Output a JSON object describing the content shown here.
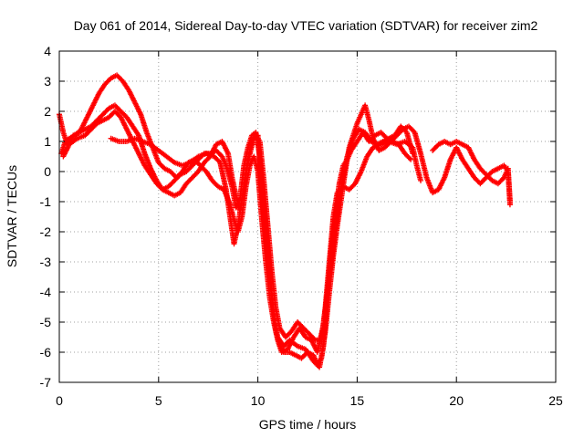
{
  "chart_data": {
    "type": "scatter",
    "title": "Day 061 of 2014, Sidereal Day-to-day VTEC variation (SDTVAR) for receiver zim2",
    "xlabel": "GPS time / hours",
    "ylabel": "SDTVAR / TECUs",
    "xlim": [
      0,
      25
    ],
    "ylim": [
      -7,
      4
    ],
    "xticks": [
      "0",
      "5",
      "10",
      "15",
      "20",
      "25"
    ],
    "yticks": [
      "4",
      "3",
      "2",
      "1",
      "0",
      "-1",
      "-2",
      "-3",
      "-4",
      "-5",
      "-6",
      "-7"
    ],
    "xtick_values": [
      0,
      5,
      10,
      15,
      20,
      25
    ],
    "ytick_values": [
      4,
      3,
      2,
      1,
      0,
      -1,
      -2,
      -3,
      -4,
      -5,
      -6,
      -7
    ],
    "grid": true,
    "marker": "+",
    "color": "#ff0000",
    "series": [
      {
        "points": [
          [
            0.0,
            1.9
          ],
          [
            0.2,
            1.3
          ],
          [
            0.4,
            0.9
          ],
          [
            0.7,
            1.2
          ],
          [
            1.0,
            1.3
          ],
          [
            1.3,
            1.4
          ],
          [
            1.6,
            1.5
          ],
          [
            1.9,
            1.7
          ],
          [
            2.2,
            1.9
          ],
          [
            2.5,
            2.1
          ],
          [
            2.8,
            2.2
          ],
          [
            3.1,
            2.0
          ],
          [
            3.4,
            1.8
          ],
          [
            3.7,
            1.5
          ],
          [
            4.0,
            1.2
          ],
          [
            4.3,
            0.6
          ],
          [
            4.6,
            0.1
          ],
          [
            4.9,
            -0.3
          ],
          [
            5.2,
            -0.6
          ],
          [
            5.5,
            -0.5
          ],
          [
            5.8,
            -0.3
          ],
          [
            6.1,
            -0.1
          ],
          [
            6.4,
            0.0
          ],
          [
            6.7,
            0.2
          ],
          [
            7.0,
            0.4
          ],
          [
            7.3,
            0.6
          ],
          [
            7.6,
            0.6
          ],
          [
            7.9,
            0.7
          ],
          [
            8.2,
            0.5
          ],
          [
            8.4,
            0.2
          ],
          [
            8.7,
            -0.5
          ],
          [
            8.9,
            -1.2
          ],
          [
            9.1,
            -0.9
          ],
          [
            9.3,
            0.2
          ],
          [
            9.5,
            0.8
          ],
          [
            9.7,
            1.2
          ],
          [
            9.9,
            1.3
          ],
          [
            10.1,
            0.5
          ],
          [
            10.3,
            -1.0
          ],
          [
            10.5,
            -2.5
          ],
          [
            10.7,
            -4.0
          ],
          [
            10.9,
            -5.3
          ],
          [
            11.1,
            -5.8
          ],
          [
            11.3,
            -6.0
          ],
          [
            11.6,
            -6.0
          ],
          [
            11.9,
            -6.1
          ],
          [
            12.2,
            -6.2
          ],
          [
            12.5,
            -6.0
          ],
          [
            12.8,
            -6.1
          ],
          [
            13.0,
            -6.4
          ],
          [
            13.2,
            -6.2
          ],
          [
            13.4,
            -5.3
          ],
          [
            13.6,
            -4.0
          ],
          [
            13.8,
            -2.8
          ],
          [
            14.0,
            -1.8
          ],
          [
            14.2,
            -0.9
          ],
          [
            14.4,
            0.0
          ],
          [
            14.6,
            0.8
          ],
          [
            14.8,
            1.2
          ],
          [
            15.0,
            1.6
          ],
          [
            15.2,
            1.9
          ],
          [
            15.4,
            2.2
          ],
          [
            15.6,
            1.7
          ],
          [
            15.8,
            1.1
          ],
          [
            16.1,
            0.7
          ],
          [
            16.4,
            0.8
          ],
          [
            16.7,
            1.0
          ],
          [
            17.0,
            1.2
          ],
          [
            17.3,
            1.4
          ],
          [
            17.6,
            1.5
          ],
          [
            17.9,
            1.3
          ],
          [
            18.2,
            0.6
          ],
          [
            18.5,
            -0.2
          ],
          [
            18.8,
            -0.7
          ],
          [
            19.1,
            -0.6
          ],
          [
            19.4,
            -0.2
          ],
          [
            19.7,
            0.4
          ],
          [
            20.0,
            0.8
          ],
          [
            20.3,
            0.4
          ],
          [
            20.6,
            0.1
          ],
          [
            20.9,
            -0.2
          ],
          [
            21.2,
            -0.4
          ],
          [
            21.5,
            -0.2
          ],
          [
            21.8,
            0.0
          ],
          [
            22.1,
            0.1
          ],
          [
            22.4,
            0.2
          ],
          [
            22.6,
            0.0
          ],
          [
            22.7,
            -1.0
          ]
        ]
      },
      {
        "points": [
          [
            0.1,
            0.6
          ],
          [
            0.3,
            1.0
          ],
          [
            0.5,
            1.1
          ],
          [
            0.8,
            1.2
          ],
          [
            1.1,
            1.4
          ],
          [
            1.4,
            1.8
          ],
          [
            1.7,
            2.2
          ],
          [
            2.0,
            2.6
          ],
          [
            2.3,
            2.9
          ],
          [
            2.6,
            3.1
          ],
          [
            2.9,
            3.2
          ],
          [
            3.2,
            3.0
          ],
          [
            3.5,
            2.7
          ],
          [
            3.8,
            2.3
          ],
          [
            4.1,
            1.9
          ],
          [
            4.4,
            1.3
          ],
          [
            4.7,
            0.8
          ],
          [
            5.0,
            0.3
          ],
          [
            5.3,
            0.1
          ],
          [
            5.6,
            0.0
          ],
          [
            5.9,
            -0.2
          ],
          [
            6.2,
            0.0
          ],
          [
            6.5,
            0.3
          ],
          [
            6.8,
            0.4
          ],
          [
            7.1,
            0.2
          ],
          [
            7.4,
            0.0
          ],
          [
            7.7,
            -0.3
          ],
          [
            8.0,
            -0.5
          ],
          [
            8.3,
            -0.6
          ],
          [
            8.6,
            -1.1
          ],
          [
            8.8,
            -1.6
          ],
          [
            9.0,
            -2.0
          ],
          [
            9.2,
            -1.5
          ],
          [
            9.4,
            -0.5
          ],
          [
            9.6,
            0.2
          ],
          [
            9.8,
            0.5
          ],
          [
            10.0,
            0.0
          ],
          [
            10.2,
            -1.6
          ],
          [
            10.4,
            -3.0
          ],
          [
            10.6,
            -4.2
          ],
          [
            10.8,
            -5.0
          ],
          [
            11.0,
            -5.6
          ],
          [
            11.2,
            -6.0
          ],
          [
            11.5,
            -5.9
          ],
          [
            11.8,
            -5.5
          ],
          [
            12.1,
            -5.2
          ],
          [
            12.4,
            -5.5
          ],
          [
            12.7,
            -5.6
          ],
          [
            13.0,
            -6.0
          ],
          [
            13.3,
            -5.1
          ],
          [
            13.6,
            -3.5
          ],
          [
            13.9,
            -2.0
          ],
          [
            14.2,
            -0.5
          ],
          [
            14.5,
            0.5
          ],
          [
            14.8,
            1.1
          ],
          [
            15.1,
            1.4
          ],
          [
            15.4,
            1.3
          ],
          [
            15.7,
            1.0
          ],
          [
            16.0,
            0.9
          ],
          [
            16.3,
            1.0
          ],
          [
            16.6,
            1.1
          ],
          [
            16.9,
            1.2
          ],
          [
            17.2,
            1.5
          ],
          [
            17.5,
            1.3
          ],
          [
            17.8,
            0.6
          ]
        ]
      },
      {
        "points": [
          [
            0.2,
            0.5
          ],
          [
            0.5,
            0.9
          ],
          [
            0.9,
            1.1
          ],
          [
            1.3,
            1.2
          ],
          [
            1.6,
            1.4
          ],
          [
            1.9,
            1.6
          ],
          [
            2.2,
            1.7
          ],
          [
            2.5,
            1.8
          ],
          [
            2.8,
            2.0
          ],
          [
            3.1,
            1.8
          ],
          [
            3.4,
            1.4
          ],
          [
            3.7,
            1.0
          ],
          [
            4.0,
            0.6
          ],
          [
            4.3,
            0.2
          ],
          [
            4.6,
            -0.1
          ],
          [
            4.9,
            -0.4
          ],
          [
            5.2,
            -0.6
          ],
          [
            5.5,
            -0.7
          ],
          [
            5.8,
            -0.8
          ],
          [
            6.1,
            -0.7
          ],
          [
            6.4,
            -0.4
          ],
          [
            6.7,
            -0.2
          ],
          [
            7.0,
            0.0
          ],
          [
            7.3,
            0.3
          ],
          [
            7.6,
            0.5
          ],
          [
            7.9,
            0.9
          ],
          [
            8.2,
            1.0
          ],
          [
            8.5,
            0.6
          ],
          [
            8.7,
            -0.2
          ],
          [
            8.9,
            -0.8
          ],
          [
            9.1,
            -1.3
          ],
          [
            9.3,
            -0.6
          ],
          [
            9.5,
            0.4
          ],
          [
            9.7,
            1.0
          ],
          [
            9.9,
            1.2
          ],
          [
            10.1,
            1.0
          ],
          [
            10.3,
            -0.3
          ],
          [
            10.5,
            -1.8
          ],
          [
            10.7,
            -3.3
          ],
          [
            10.9,
            -4.5
          ],
          [
            11.1,
            -5.2
          ],
          [
            11.4,
            -5.5
          ],
          [
            11.7,
            -5.3
          ],
          [
            12.0,
            -5.0
          ],
          [
            12.3,
            -5.2
          ],
          [
            12.6,
            -5.4
          ],
          [
            12.9,
            -5.6
          ],
          [
            13.2,
            -5.6
          ],
          [
            13.4,
            -4.5
          ],
          [
            13.6,
            -3.0
          ],
          [
            13.8,
            -1.5
          ],
          [
            14.0,
            -0.7
          ],
          [
            14.3,
            -0.5
          ],
          [
            14.6,
            -0.6
          ],
          [
            14.9,
            -0.4
          ],
          [
            15.2,
            0.0
          ],
          [
            15.5,
            0.5
          ],
          [
            15.8,
            0.8
          ],
          [
            16.2,
            0.9
          ],
          [
            16.6,
            1.0
          ],
          [
            17.0,
            0.9
          ],
          [
            17.4,
            1.0
          ],
          [
            17.8,
            0.8
          ],
          [
            18.0,
            0.2
          ],
          [
            18.2,
            -0.3
          ]
        ]
      },
      {
        "points": [
          [
            2.6,
            1.1
          ],
          [
            3.0,
            1.0
          ],
          [
            3.4,
            1.0
          ],
          [
            3.8,
            1.1
          ],
          [
            4.2,
            1.0
          ],
          [
            4.6,
            0.9
          ],
          [
            5.0,
            0.7
          ],
          [
            5.4,
            0.5
          ],
          [
            5.8,
            0.3
          ],
          [
            6.2,
            0.2
          ],
          [
            6.6,
            0.3
          ],
          [
            7.0,
            0.5
          ],
          [
            7.4,
            0.6
          ],
          [
            7.8,
            0.5
          ],
          [
            8.1,
            0.3
          ],
          [
            8.4,
            -0.6
          ],
          [
            8.6,
            -1.5
          ],
          [
            8.8,
            -2.4
          ],
          [
            9.0,
            -1.8
          ],
          [
            9.2,
            -0.9
          ],
          [
            9.4,
            0.0
          ],
          [
            9.6,
            0.6
          ],
          [
            9.8,
            1.1
          ],
          [
            10.0,
            1.2
          ],
          [
            10.2,
            -0.6
          ],
          [
            10.4,
            -2.0
          ],
          [
            10.6,
            -3.6
          ],
          [
            10.8,
            -4.8
          ],
          [
            11.0,
            -5.5
          ],
          [
            11.3,
            -5.8
          ],
          [
            11.6,
            -5.6
          ],
          [
            12.0,
            -5.8
          ],
          [
            12.4,
            -5.9
          ],
          [
            12.8,
            -6.3
          ],
          [
            13.1,
            -6.5
          ],
          [
            13.3,
            -5.8
          ],
          [
            13.5,
            -4.2
          ],
          [
            13.7,
            -2.6
          ],
          [
            13.9,
            -1.4
          ],
          [
            14.1,
            -0.4
          ],
          [
            14.3,
            0.2
          ],
          [
            14.5,
            0.4
          ],
          [
            14.7,
            0.7
          ],
          [
            15.0,
            1.0
          ],
          [
            15.3,
            1.3
          ],
          [
            15.6,
            1.0
          ],
          [
            15.9,
            1.2
          ],
          [
            16.2,
            1.3
          ],
          [
            16.5,
            1.1
          ],
          [
            16.8,
            1.0
          ],
          [
            17.1,
            0.9
          ],
          [
            17.4,
            0.6
          ],
          [
            17.7,
            0.4
          ]
        ]
      },
      {
        "points": [
          [
            18.8,
            0.7
          ],
          [
            19.1,
            0.9
          ],
          [
            19.4,
            1.0
          ],
          [
            19.7,
            0.9
          ],
          [
            20.0,
            1.0
          ],
          [
            20.3,
            0.9
          ],
          [
            20.6,
            0.8
          ],
          [
            20.9,
            0.4
          ],
          [
            21.2,
            0.1
          ],
          [
            21.5,
            -0.1
          ],
          [
            21.8,
            -0.3
          ],
          [
            22.1,
            -0.4
          ],
          [
            22.4,
            -0.2
          ],
          [
            22.6,
            0.1
          ],
          [
            22.7,
            -1.1
          ]
        ]
      }
    ]
  }
}
